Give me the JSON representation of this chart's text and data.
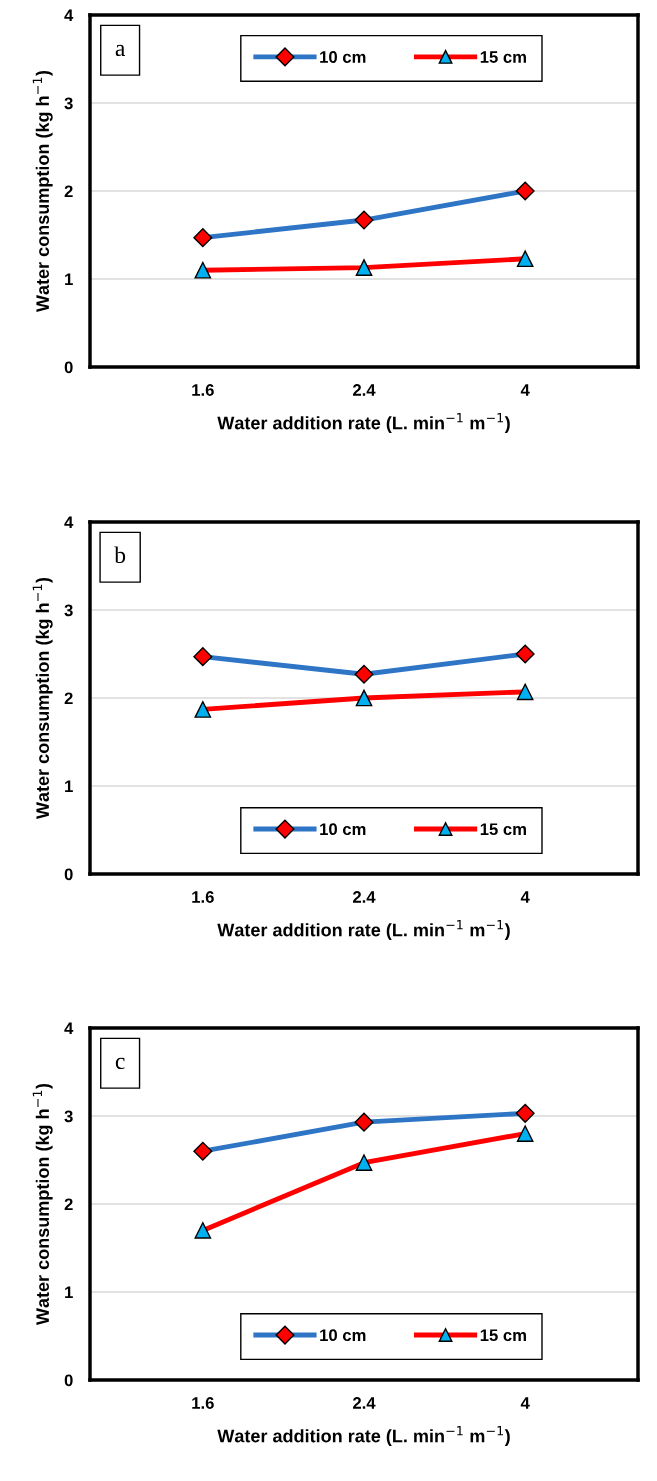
{
  "chart_data": [
    {
      "type": "line",
      "categories": [
        "1.6",
        "2.4",
        "4"
      ],
      "xlabel": "Water addition rate (L. min$^{−1}$ m$^{−1}$)",
      "ylabel": "Water consumption (kg h$^{−1}$)",
      "ylim": [
        0,
        4
      ],
      "yticks": [
        0,
        1,
        2,
        3,
        4
      ],
      "grid": "y",
      "legend": "top",
      "annotations": [
        "a"
      ],
      "series": [
        {
          "name": "10 cm",
          "color": "#2e75c6",
          "marker": "diamond",
          "values": [
            1.47,
            1.67,
            2.0
          ]
        },
        {
          "name": "15 cm",
          "color": "#ff0000",
          "marker": "triangle",
          "values": [
            1.1,
            1.13,
            1.23
          ]
        }
      ]
    },
    {
      "type": "line",
      "categories": [
        "1.6",
        "2.4",
        "4"
      ],
      "xlabel": "Water addition rate (L. min$^{−1}$ m$^{−1}$)",
      "ylabel": "Water consumption (kg h$^{−1}$)",
      "ylim": [
        0,
        4
      ],
      "yticks": [
        0,
        1,
        2,
        3,
        4
      ],
      "grid": "y",
      "legend": "bottom",
      "annotations": [
        "b"
      ],
      "series": [
        {
          "name": "10 cm",
          "color": "#2e75c6",
          "marker": "diamond",
          "values": [
            2.47,
            2.27,
            2.5
          ]
        },
        {
          "name": "15 cm",
          "color": "#ff0000",
          "marker": "triangle",
          "values": [
            1.87,
            2.0,
            2.07
          ]
        }
      ]
    },
    {
      "type": "line",
      "categories": [
        "1.6",
        "2.4",
        "4"
      ],
      "xlabel": "Water addition rate (L. min$^{−1}$ m$^{−1}$)",
      "ylabel": "Water consumption (kg h$^{−1}$)",
      "ylim": [
        0,
        4
      ],
      "yticks": [
        0,
        1,
        2,
        3,
        4
      ],
      "grid": "y",
      "legend": "bottom",
      "annotations": [
        "c"
      ],
      "series": [
        {
          "name": "10 cm",
          "color": "#2e75c6",
          "marker": "diamond",
          "values": [
            2.6,
            2.93,
            3.03
          ]
        },
        {
          "name": "15 cm",
          "color": "#ff0000",
          "marker": "triangle",
          "values": [
            1.7,
            2.47,
            2.8
          ]
        }
      ]
    }
  ]
}
